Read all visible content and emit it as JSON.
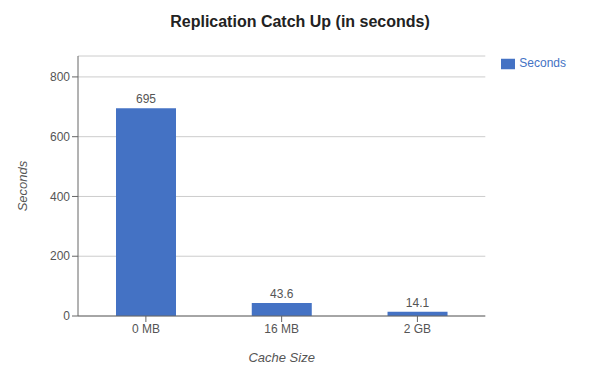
{
  "chart_data": {
    "type": "bar",
    "title": "Replication Catch Up (in seconds)",
    "categories": [
      "0 MB",
      "16 MB",
      "2 GB"
    ],
    "series": [
      {
        "name": "Seconds",
        "color": "#4472c4",
        "values": [
          695,
          43.6,
          14.1
        ]
      }
    ],
    "xlabel": "Cache Size",
    "ylabel": "Seconds",
    "ylim": [
      0,
      870
    ],
    "yticks": [
      0,
      200,
      400,
      600,
      800
    ],
    "grid": true,
    "legend": "right",
    "data_labels": true
  }
}
